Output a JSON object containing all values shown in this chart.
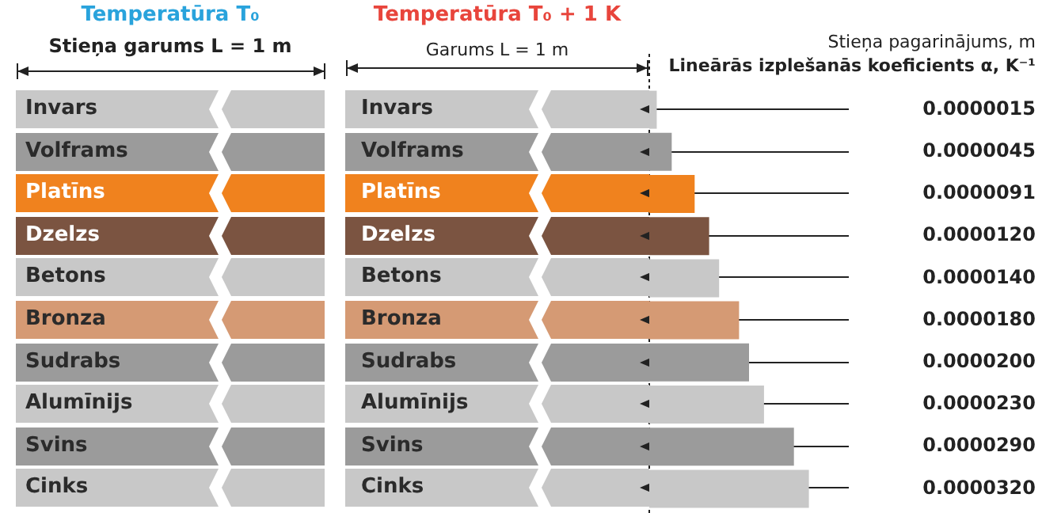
{
  "chart_data": {
    "type": "bar",
    "orientation": "horizontal",
    "categories": [
      "Invars",
      "Volframs",
      "Platīns",
      "Dzelzs",
      "Betons",
      "Bronza",
      "Sudrabs",
      "Alumīnijs",
      "Svins",
      "Cinks"
    ],
    "values": [
      1.5e-06,
      4.5e-06,
      9.1e-06,
      1.2e-05,
      1.4e-05,
      1.8e-05,
      2e-05,
      2.3e-05,
      2.9e-05,
      3.2e-05
    ],
    "value_labels": [
      "0.0000015",
      "0.0000045",
      "0.0000091",
      "0.0000120",
      "0.0000140",
      "0.0000180",
      "0.0000200",
      "0.0000230",
      "0.0000290",
      "0.0000320"
    ],
    "colors": [
      "#c8c8c8",
      "#9b9b9b",
      "#f0821e",
      "#7b5441",
      "#c8c8c8",
      "#d59a74",
      "#9b9b9b",
      "#c8c8c8",
      "#9b9b9b",
      "#c8c8c8"
    ],
    "xlabel": "Lineārās izplešanās koeficients α, K⁻¹",
    "annotations": [
      "Temperatūra T₀",
      "Stieņa garums L = 1 m",
      "Temperatūra T₀ + 1 K",
      "Garums L = 1 m",
      "Stieņa pagarinājums, m"
    ],
    "tick_labels": false
  }
}
